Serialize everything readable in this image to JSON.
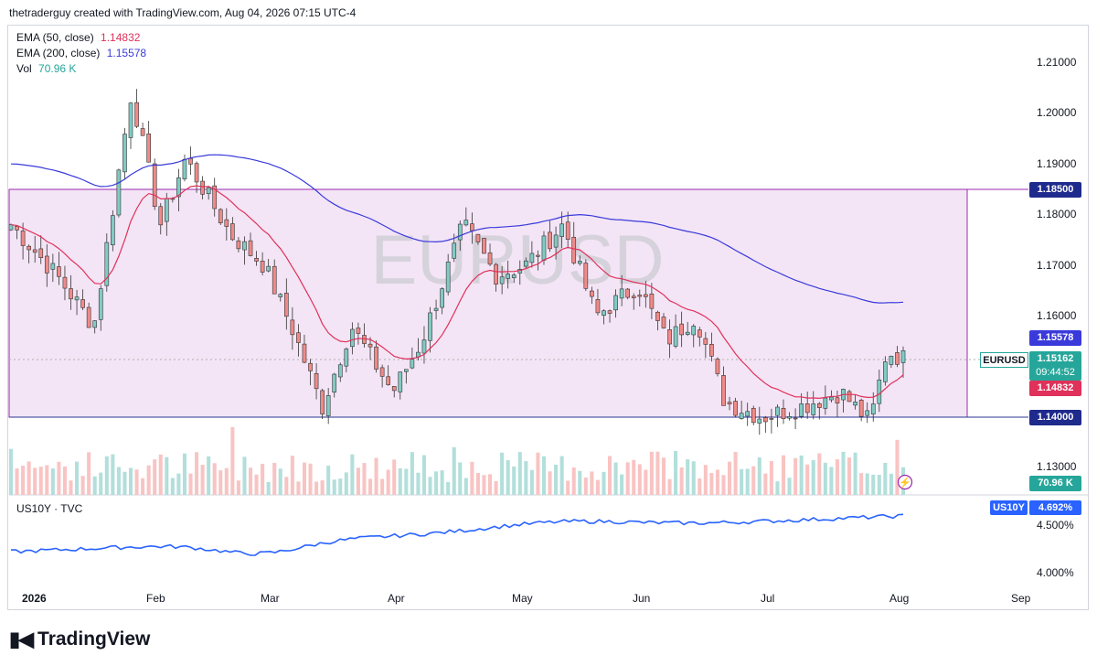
{
  "header": {
    "text": "thetraderguy created with TradingView.com, Aug 04, 2026 07:15 UTC-4"
  },
  "watermark": "EURUSD",
  "legend": {
    "ema50": {
      "label": "EMA (50, close)",
      "value": "1.14832",
      "color": "#e0315a"
    },
    "ema200": {
      "label": "EMA (200, close)",
      "value": "1.15578",
      "color": "#3a3adb"
    },
    "vol": {
      "label": "Vol",
      "value": "70.96 K",
      "color": "#26a69a"
    }
  },
  "price_axis": [
    "1.21000",
    "1.20000",
    "1.19000",
    "1.18000",
    "1.17000",
    "1.16000",
    "1.13000"
  ],
  "price_labels": {
    "range_top": "1.18500",
    "ema200": "1.15578",
    "symbol": "EURUSD",
    "last": "1.15162",
    "countdown": "09:44:52",
    "ema50": "1.14832",
    "range_bottom": "1.14000",
    "vol": "70.96 K"
  },
  "sub_pane": {
    "title": "US10Y · TVC",
    "symbol_label": "US10Y",
    "value": "4.692%",
    "axis": [
      "4.500%",
      "4.000%"
    ]
  },
  "time_axis": [
    "2026",
    "Feb",
    "Mar",
    "Apr",
    "May",
    "Jun",
    "Jul",
    "Aug",
    "Sep"
  ],
  "brand": "TradingView",
  "colors": {
    "up": "#26a69a",
    "down": "#ef5350",
    "range_fill": "#f3e5f5",
    "range_border": "#9c27b0",
    "us10y": "#2962ff"
  },
  "chart_data": {
    "type": "candlestick",
    "symbol": "EURUSD",
    "horizontal_levels": [
      1.185,
      1.14
    ],
    "range_box": {
      "top": 1.185,
      "bottom": 1.1405
    },
    "anchors": [
      {
        "date": "2026-01-01",
        "close": 1.178
      },
      {
        "date": "2026-01-12",
        "close": 1.168
      },
      {
        "date": "2026-01-21",
        "close": 1.158
      },
      {
        "date": "2026-01-30",
        "close": 1.204
      },
      {
        "date": "2026-02-06",
        "close": 1.178
      },
      {
        "date": "2026-02-12",
        "close": 1.191
      },
      {
        "date": "2026-02-23",
        "close": 1.176
      },
      {
        "date": "2026-03-03",
        "close": 1.17
      },
      {
        "date": "2026-03-10",
        "close": 1.157
      },
      {
        "date": "2026-03-17",
        "close": 1.142
      },
      {
        "date": "2026-03-24",
        "close": 1.158
      },
      {
        "date": "2026-04-03",
        "close": 1.145
      },
      {
        "date": "2026-04-10",
        "close": 1.155
      },
      {
        "date": "2026-04-20",
        "close": 1.178
      },
      {
        "date": "2026-04-28",
        "close": 1.168
      },
      {
        "date": "2026-05-05",
        "close": 1.17
      },
      {
        "date": "2026-05-14",
        "close": 1.178
      },
      {
        "date": "2026-05-22",
        "close": 1.16
      },
      {
        "date": "2026-06-01",
        "close": 1.166
      },
      {
        "date": "2026-06-08",
        "close": 1.155
      },
      {
        "date": "2026-06-15",
        "close": 1.16
      },
      {
        "date": "2026-06-22",
        "close": 1.143
      },
      {
        "date": "2026-07-01",
        "close": 1.14
      },
      {
        "date": "2026-07-10",
        "close": 1.142
      },
      {
        "date": "2026-07-20",
        "close": 1.145
      },
      {
        "date": "2026-07-27",
        "close": 1.139
      },
      {
        "date": "2026-07-31",
        "close": 1.153
      },
      {
        "date": "2026-08-04",
        "close": 1.1516
      }
    ],
    "ema50": {
      "end": 1.14832
    },
    "ema200": {
      "end": 1.15578
    },
    "us10y": {
      "last": 4.692,
      "ylim": [
        3.8,
        4.85
      ]
    },
    "ylim": [
      1.125,
      1.215
    ]
  }
}
